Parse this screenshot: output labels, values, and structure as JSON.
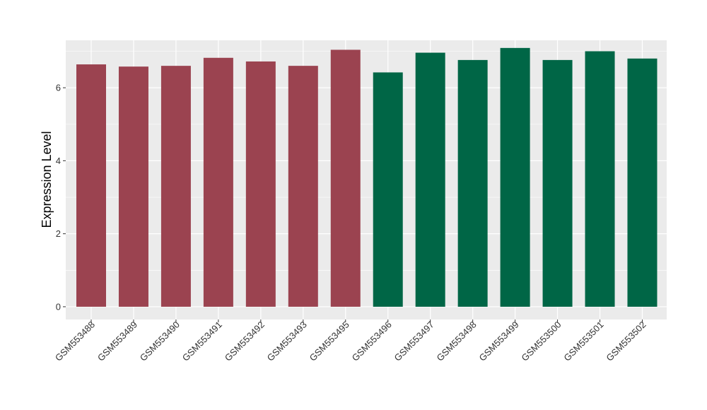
{
  "chart_data": {
    "type": "bar",
    "title": "",
    "xlabel": "",
    "ylabel": "Expression Level",
    "ylim": [
      -0.35,
      7.3
    ],
    "yticks": [
      0,
      2,
      4,
      6
    ],
    "grid": true,
    "legend": "none",
    "colors": {
      "group1": "#9B4350",
      "group2": "#006646",
      "panel": "#EBEBEB",
      "grid": "#FFFFFF"
    },
    "categories": [
      "GSM553488",
      "GSM553489",
      "GSM553490",
      "GSM553491",
      "GSM553492",
      "GSM553493",
      "GSM553495",
      "GSM553496",
      "GSM553497",
      "GSM553498",
      "GSM553499",
      "GSM553500",
      "GSM553501",
      "GSM553502"
    ],
    "values": [
      6.64,
      6.58,
      6.6,
      6.82,
      6.72,
      6.6,
      7.04,
      6.42,
      6.96,
      6.76,
      7.09,
      6.76,
      7.0,
      6.8
    ],
    "groups": [
      1,
      1,
      1,
      1,
      1,
      1,
      1,
      2,
      2,
      2,
      2,
      2,
      2,
      2
    ]
  }
}
